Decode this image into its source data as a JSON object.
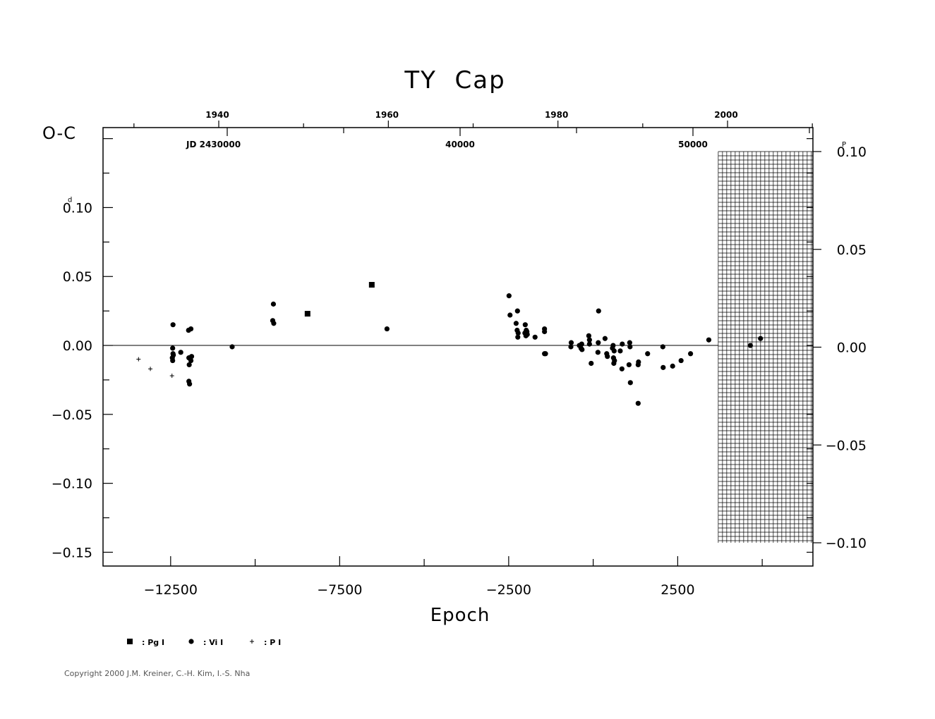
{
  "chart_data": {
    "type": "scatter",
    "title": "TY  Cap",
    "ylabel": "O-C",
    "xlabel": "Epoch",
    "y_unit_left": "d",
    "y_unit_right": "P",
    "xlim": [
      -14500,
      6500
    ],
    "ylim": [
      -0.16,
      0.158
    ],
    "right_ylim": [
      -0.1,
      0.1
    ],
    "x_ticks": [
      -12500,
      -7500,
      -2500,
      2500
    ],
    "x_tick_labels": [
      "−12500",
      "−7500",
      "−2500",
      "2500"
    ],
    "y_ticks": [
      0.1,
      0.05,
      0.0,
      -0.05,
      -0.1,
      -0.15
    ],
    "y_tick_labels": [
      "0.10",
      "0.05",
      "0.00",
      "−0.05",
      "−0.10",
      "−0.15"
    ],
    "right_y_ticks": [
      0.1,
      0.05,
      0.0,
      -0.05,
      -0.1
    ],
    "right_y_tick_labels": [
      "0.10",
      "0.05",
      "0.00",
      "−0.05",
      "−0.10"
    ],
    "top_year_ticks": [
      1940,
      1960,
      1980,
      2000
    ],
    "top_year_labels": [
      "1940",
      "1960",
      "1980",
      "2000"
    ],
    "jd_prefix_label": "JD 2430000",
    "jd_ticks": [
      30000,
      40000,
      50000
    ],
    "jd_labels": [
      "",
      "40000",
      "50000"
    ],
    "hatched_region": {
      "x_from": 3700,
      "x_to": 6500,
      "y_from": -0.1,
      "y_to": 0.1
    },
    "legend": [
      {
        "marker": "square",
        "label": ": Pg  I"
      },
      {
        "marker": "circle",
        "label": ": Vi  I"
      },
      {
        "marker": "plus",
        "label": ": P  I"
      }
    ],
    "series": [
      {
        "name": ": Pg  I",
        "marker": "square",
        "points": [
          [
            -8450,
            0.023
          ],
          [
            -6550,
            0.044
          ]
        ]
      },
      {
        "name": ": Vi  I",
        "marker": "circle",
        "points": [
          [
            -12430,
            0.015
          ],
          [
            -12440,
            -0.002
          ],
          [
            -12430,
            -0.006
          ],
          [
            -12450,
            -0.009
          ],
          [
            -12440,
            -0.011
          ],
          [
            -12420,
            -0.007
          ],
          [
            -12200,
            -0.005
          ],
          [
            -11970,
            0.011
          ],
          [
            -11900,
            0.012
          ],
          [
            -11960,
            -0.009
          ],
          [
            -11880,
            -0.008
          ],
          [
            -11950,
            -0.014
          ],
          [
            -11900,
            -0.011
          ],
          [
            -11960,
            -0.026
          ],
          [
            -11940,
            -0.028
          ],
          [
            -10680,
            -0.001
          ],
          [
            -9460,
            0.03
          ],
          [
            -9480,
            0.018
          ],
          [
            -9450,
            0.016
          ],
          [
            -6100,
            0.012
          ],
          [
            -2490,
            0.036
          ],
          [
            -2460,
            0.022
          ],
          [
            -2240,
            0.025
          ],
          [
            -2280,
            0.016
          ],
          [
            -2250,
            0.011
          ],
          [
            -2230,
            0.006
          ],
          [
            -2220,
            0.009
          ],
          [
            -2010,
            0.015
          ],
          [
            -2020,
            0.009
          ],
          [
            -1980,
            0.011
          ],
          [
            -1960,
            0.01
          ],
          [
            -1950,
            0.008
          ],
          [
            -1990,
            0.007
          ],
          [
            -1720,
            0.006
          ],
          [
            -1440,
            0.012
          ],
          [
            -1440,
            0.01
          ],
          [
            -1440,
            -0.006
          ],
          [
            -1410,
            -0.006
          ],
          [
            -650,
            0.002
          ],
          [
            -660,
            -0.001
          ],
          [
            -410,
            0.0
          ],
          [
            -360,
            -0.002
          ],
          [
            -340,
            0.001
          ],
          [
            -330,
            -0.003
          ],
          [
            -130,
            0.007
          ],
          [
            -110,
            0.004
          ],
          [
            -110,
            0.001
          ],
          [
            -60,
            -0.013
          ],
          [
            160,
            0.025
          ],
          [
            150,
            0.002
          ],
          [
            140,
            -0.005
          ],
          [
            350,
            0.005
          ],
          [
            400,
            -0.006
          ],
          [
            420,
            -0.008
          ],
          [
            570,
            -0.002
          ],
          [
            590,
            0.0
          ],
          [
            620,
            -0.004
          ],
          [
            600,
            -0.009
          ],
          [
            630,
            -0.011
          ],
          [
            610,
            -0.013
          ],
          [
            800,
            -0.004
          ],
          [
            860,
            0.001
          ],
          [
            850,
            -0.017
          ],
          [
            1080,
            0.002
          ],
          [
            1090,
            -0.001
          ],
          [
            1060,
            -0.014
          ],
          [
            1100,
            -0.027
          ],
          [
            1340,
            -0.012
          ],
          [
            1330,
            -0.014
          ],
          [
            1330,
            -0.042
          ],
          [
            1610,
            -0.006
          ],
          [
            2060,
            -0.001
          ],
          [
            2070,
            -0.016
          ],
          [
            2350,
            -0.015
          ],
          [
            2600,
            -0.011
          ],
          [
            2880,
            -0.006
          ],
          [
            3420,
            0.004
          ],
          [
            4650,
            0.0
          ],
          [
            4950,
            0.005
          ]
        ]
      },
      {
        "name": ": P  I",
        "marker": "plus",
        "points": [
          [
            -13450,
            -0.01
          ],
          [
            -13100,
            -0.017
          ],
          [
            -12460,
            -0.022
          ]
        ]
      }
    ]
  },
  "copyright": "Copyright 2000 J.M. Kreiner, C.-H. Kim, I.-S. Nha"
}
